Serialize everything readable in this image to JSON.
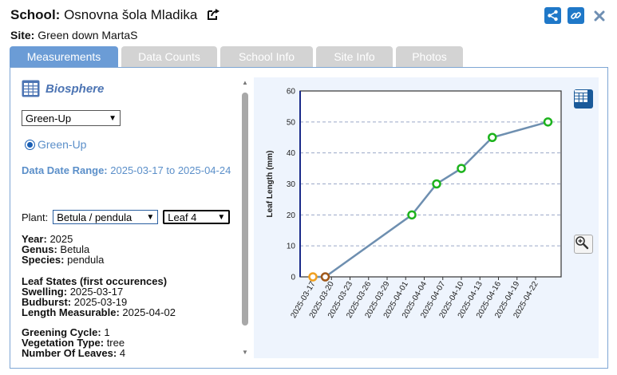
{
  "header": {
    "school_label": "School:",
    "school_name": "Osnovna šola Mladika",
    "site_label": "Site:",
    "site_name": "Green down MartaS"
  },
  "tabs": [
    {
      "label": "Measurements",
      "active": true
    },
    {
      "label": "Data Counts",
      "active": false
    },
    {
      "label": "School Info",
      "active": false
    },
    {
      "label": "Site Info",
      "active": false
    },
    {
      "label": "Photos",
      "active": false
    }
  ],
  "left": {
    "protocol_title": "Biosphere",
    "protocol_select": "Green-Up",
    "radio_label": "Green-Up",
    "date_range_label": "Data Date Range:",
    "date_range_value": "2025-03-17 to 2025-04-24",
    "plant_label": "Plant:",
    "plant_select": "Betula / pendula",
    "leaf_select": "Leaf 4",
    "year_label": "Year:",
    "year_value": "2025",
    "genus_label": "Genus:",
    "genus_value": "Betula",
    "species_label": "Species:",
    "species_value": "pendula",
    "leaf_states_heading": "Leaf States (first occurences)",
    "swelling_label": "Swelling:",
    "swelling_value": "2025-03-17",
    "budburst_label": "Budburst:",
    "budburst_value": "2025-03-19",
    "length_label": "Length Measurable:",
    "length_value": "2025-04-02",
    "greening_label": "Greening Cycle:",
    "greening_value": "1",
    "vegetation_label": "Vegetation Type:",
    "vegetation_value": "tree",
    "leaves_label": "Number Of Leaves:",
    "leaves_value": "4"
  },
  "colors": {
    "accent": "#1f78c8",
    "tab_active": "#6b9cd6",
    "tab_inactive": "#d3d3d3",
    "link_text": "#5b8fc9",
    "chart_bg": "#eef4fd",
    "series_line": "#6e8fb0",
    "green_marker": "#1db31d",
    "orange_marker": "#f0a020",
    "brown_marker": "#a0581a"
  },
  "chart_data": {
    "type": "line",
    "ylabel": "Leaf Length (mm)",
    "xlabel": "",
    "ylim": [
      0,
      60
    ],
    "yticks": [
      0,
      10,
      20,
      30,
      40,
      50,
      60
    ],
    "x_ticks": [
      "2025-03-17",
      "2025-03-20",
      "2025-03-23",
      "2025-03-26",
      "2025-03-29",
      "2025-04-01",
      "2025-04-04",
      "2025-04-07",
      "2025-04-10",
      "2025-04-13",
      "2025-04-16",
      "2025-04-19",
      "2025-04-22"
    ],
    "grid": "horizontal dashed",
    "points": [
      {
        "x": "2025-03-17",
        "y": 0,
        "color": "orange"
      },
      {
        "x": "2025-03-19",
        "y": 0,
        "color": "brown"
      },
      {
        "x": "2025-04-02",
        "y": 20,
        "color": "green"
      },
      {
        "x": "2025-04-06",
        "y": 30,
        "color": "green"
      },
      {
        "x": "2025-04-10",
        "y": 35,
        "color": "green"
      },
      {
        "x": "2025-04-15",
        "y": 45,
        "color": "green"
      },
      {
        "x": "2025-04-24",
        "y": 50,
        "color": "green"
      }
    ]
  }
}
